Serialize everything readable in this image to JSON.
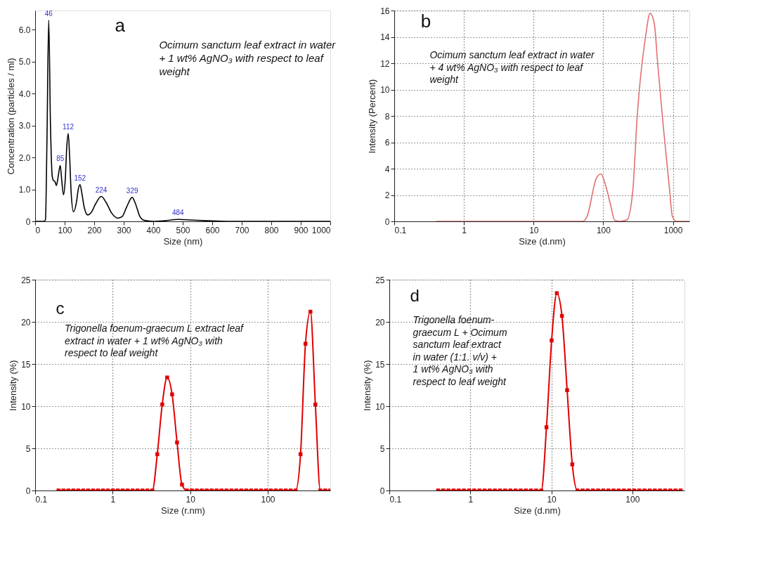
{
  "chart_data": [
    {
      "type": "line",
      "xlabel": "Size (nm)",
      "ylabel": "Concentration (particles / ml)",
      "color": "#000000",
      "marker": "none",
      "line_style": "solid",
      "grid": false,
      "annotations": [
        "a",
        "Ocimum sanctum leaf extract in water + 1 wt% AgNO₃ with respect to leaf weight",
        {
          "text": "46",
          "x": 46,
          "y": 6.3
        },
        {
          "text": "85",
          "x": 85,
          "y": 1.75
        },
        {
          "text": "112",
          "x": 112,
          "y": 2.75
        },
        {
          "text": "152",
          "x": 152,
          "y": 1.15
        },
        {
          "text": "224",
          "x": 224,
          "y": 0.78
        },
        {
          "text": "329",
          "x": 329,
          "y": 0.75
        },
        {
          "text": "484",
          "x": 484,
          "y": 0.06
        }
      ],
      "x": [
        0,
        30,
        35,
        40,
        46,
        52,
        58,
        62,
        67,
        72,
        78,
        85,
        90,
        96,
        102,
        107,
        112,
        117,
        122,
        130,
        140,
        146,
        152,
        158,
        166,
        178,
        190,
        205,
        224,
        240,
        260,
        280,
        295,
        310,
        329,
        340,
        355,
        370,
        400,
        440,
        484,
        530,
        580,
        650,
        1000
      ],
      "values": [
        0,
        0,
        0.05,
        2.5,
        6.3,
        3.0,
        1.4,
        1.28,
        1.25,
        1.12,
        1.4,
        1.75,
        1.3,
        0.83,
        1.3,
        2.3,
        2.75,
        2.0,
        0.9,
        0.3,
        0.6,
        1.0,
        1.15,
        0.9,
        0.45,
        0.2,
        0.28,
        0.55,
        0.78,
        0.6,
        0.25,
        0.1,
        0.15,
        0.45,
        0.75,
        0.55,
        0.15,
        0.03,
        0,
        0.02,
        0.06,
        0.04,
        0.02,
        0,
        0
      ],
      "xlim": [
        0,
        1000
      ],
      "xticks": [
        0,
        100,
        200,
        300,
        400,
        500,
        600,
        700,
        800,
        900,
        1000
      ],
      "ylim": [
        0,
        6.6
      ],
      "yticks": [
        0,
        {
          "value": 1,
          "label": "1.0"
        },
        {
          "value": 2,
          "label": "2.0"
        },
        {
          "value": 3,
          "label": "3.0"
        },
        {
          "value": 4,
          "label": "4.0"
        },
        {
          "value": 5,
          "label": "5.0"
        },
        {
          "value": 6,
          "label": "6.0"
        }
      ]
    },
    {
      "type": "line",
      "xlabel": "Size (d.nm)",
      "ylabel": "Intensity (Percent)",
      "color": "#e07070",
      "marker": "none",
      "line_style": "solid",
      "grid": true,
      "log": "x",
      "annotations": [
        "b",
        "Ocimum sanctum leaf extract in water + 4 wt% AgNO₃ with respect to leaf weight"
      ],
      "x": [
        0.4,
        50,
        57.8,
        80,
        92.7,
        107,
        128,
        145,
        170,
        218,
        265,
        307,
        404,
        470,
        540,
        603,
        733,
        891,
        978,
        1114,
        1722
      ],
      "values": [
        0,
        0,
        0.3,
        3.3,
        3.6,
        2.8,
        1.2,
        0.1,
        0,
        0.1,
        2.3,
        8,
        14,
        15.8,
        15,
        12,
        7,
        2.5,
        0.4,
        0,
        0
      ],
      "xlim": [
        0.1,
        1722
      ],
      "xticks": [
        0.1,
        1,
        10,
        100,
        1000
      ],
      "ylim": [
        0,
        16
      ],
      "yticks": [
        0,
        2,
        4,
        6,
        8,
        10,
        12,
        14,
        16
      ]
    },
    {
      "type": "line",
      "xlabel": "Size (r.nm)",
      "ylabel": "Intensity (%)",
      "color": "#e00000",
      "marker": "square",
      "line_style": "solid",
      "grid": true,
      "log": "x",
      "annotations": [
        "c",
        "Trigonella foenum-graecum L extract leaf extract in water + 1 wt% AgNO₃ with respect to leaf weight"
      ],
      "x": [
        0.2,
        0.2316,
        0.2682,
        0.3106,
        0.3597,
        0.4165,
        0.4823,
        0.5585,
        0.6468,
        0.749,
        0.867,
        1.004,
        1.163,
        1.347,
        1.559,
        1.806,
        2.091,
        2.421,
        2.804,
        3.247,
        3.76,
        4.354,
        5.042,
        5.838,
        6.761,
        7.829,
        9.066,
        10.5,
        12.16,
        14.08,
        16.3,
        18.88,
        21.86,
        25.31,
        29.31,
        33.94,
        39.3,
        45.51,
        52.7,
        61.03,
        70.67,
        81.84,
        94.77,
        109.7,
        127.1,
        147.2,
        170.4,
        197.3,
        228.5,
        264.6,
        306.4,
        354.8,
        410.9,
        475.8,
        551,
        638
      ],
      "values": [
        0,
        0,
        0,
        0,
        0,
        0,
        0,
        0,
        0,
        0,
        0,
        0,
        0,
        0,
        0,
        0,
        0,
        0,
        0,
        0,
        4.3,
        10.2,
        13.4,
        11.4,
        5.7,
        0.7,
        0,
        0,
        0,
        0,
        0,
        0,
        0,
        0,
        0,
        0,
        0,
        0,
        0,
        0,
        0,
        0,
        0,
        0,
        0,
        0,
        0,
        0,
        0,
        4.3,
        17.4,
        21.2,
        10.2,
        0,
        0,
        0
      ],
      "xlim": [
        0.1,
        640
      ],
      "xticks": [
        0.1,
        1,
        10,
        100
      ],
      "ylim": [
        0,
        25
      ],
      "yticks": [
        0,
        5,
        10,
        15,
        20,
        25
      ]
    },
    {
      "type": "line",
      "xlabel": "Size (d.nm)",
      "ylabel": "Intensity (%)",
      "color": "#e00000",
      "marker": "square",
      "line_style": "solid",
      "grid": true,
      "log": "x",
      "annotations": [
        "d",
        "Trigonella foenum-graecum L + Ocimum sanctum leaf extract in water (1:1. v/v) + 1 wt% AgNO₃ with respect to leaf weight"
      ],
      "x": [
        0.4,
        0.4632,
        0.5364,
        0.6212,
        0.7194,
        0.833,
        0.9646,
        1.117,
        1.294,
        1.498,
        1.734,
        2.008,
        2.326,
        2.694,
        3.118,
        3.612,
        4.182,
        4.842,
        5.608,
        6.494,
        7.52,
        8.708,
        10.08,
        11.68,
        13.52,
        15.66,
        18.13,
        21,
        24.32,
        28.16,
        32.6,
        37.76,
        43.72,
        50.62,
        58.62,
        67.88,
        78.6,
        91.02,
        105.4,
        122.1,
        141.3,
        163.7,
        189.5,
        219.4,
        254.2,
        294.3,
        340.8,
        394.6
      ],
      "values": [
        0,
        0,
        0,
        0,
        0,
        0,
        0,
        0,
        0,
        0,
        0,
        0,
        0,
        0,
        0,
        0,
        0,
        0,
        0,
        0,
        0,
        7.5,
        17.8,
        23.4,
        20.7,
        11.9,
        3.1,
        0,
        0,
        0,
        0,
        0,
        0,
        0,
        0,
        0,
        0,
        0,
        0,
        0,
        0,
        0,
        0,
        0,
        0,
        0,
        0,
        0
      ],
      "xlim": [
        0.1,
        440
      ],
      "xticks": [
        0.1,
        1,
        10,
        100
      ],
      "ylim": [
        0,
        25
      ],
      "yticks": [
        0,
        5,
        10,
        15,
        20,
        25
      ]
    }
  ]
}
